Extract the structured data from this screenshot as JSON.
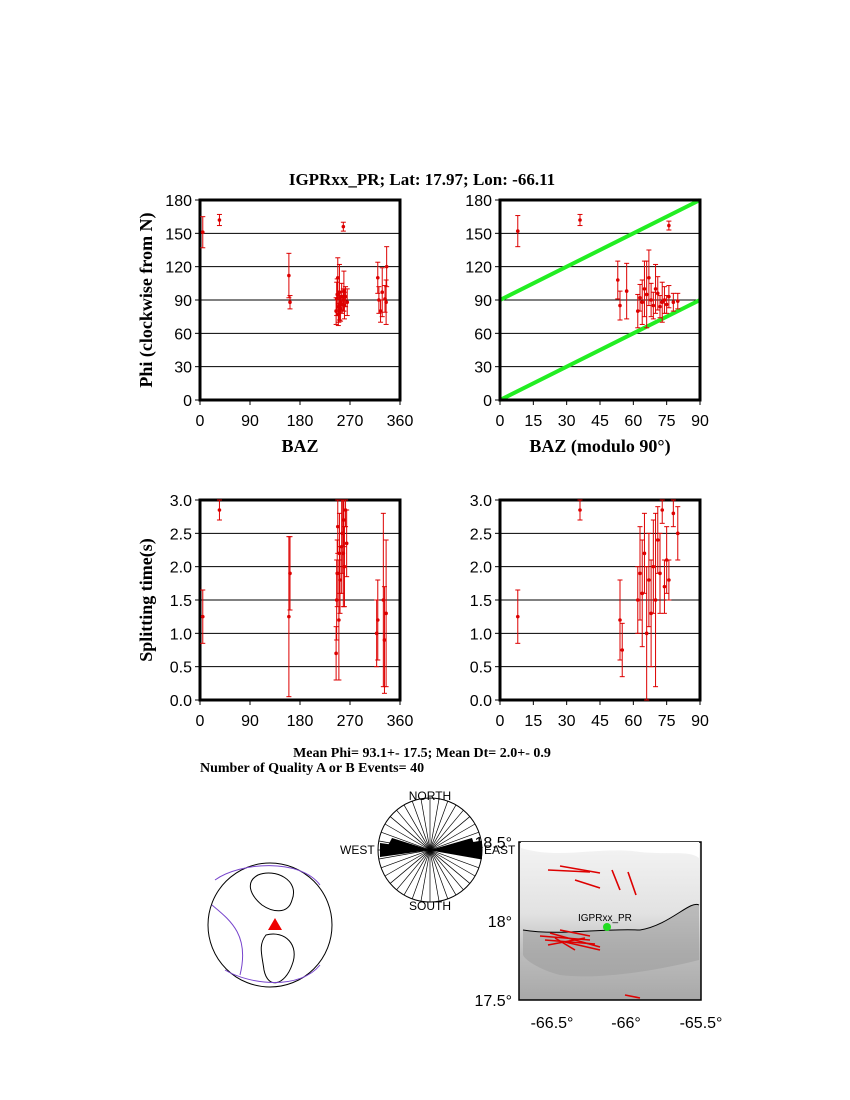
{
  "title": "IGPRxx_PR; Lat:  17.97;  Lon:  -66.11",
  "stats": {
    "line1": "Mean Phi= 93.1+- 17.5; Mean Dt=  2.0+-  0.9",
    "line2": "Number of Quality A or B Events= 40"
  },
  "rose": {
    "north": "NORTH",
    "south": "SOUTH",
    "west": "WEST",
    "east": "EAST"
  },
  "map": {
    "station": "IGPRxx_PR",
    "lat_labels": [
      "17.5°",
      "18°",
      "18.5°"
    ],
    "lon_labels": [
      "-66.5°",
      "-66°",
      "-65.5°"
    ],
    "station_color": "#22dd22"
  },
  "colors": {
    "data": "#dd0000",
    "fit": "#22ee22"
  },
  "chart_data": [
    {
      "type": "scatter",
      "id": "phi_baz",
      "title": "IGPRxx_PR; Lat:  17.97;  Lon:  -66.11",
      "xlabel": "BAZ",
      "ylabel": "Phi (clockwise from N)",
      "xlim": [
        0,
        360
      ],
      "ylim": [
        0,
        180
      ],
      "xticks": [
        "0",
        "90",
        "180",
        "270",
        "360"
      ],
      "yticks": [
        "0",
        "30",
        "60",
        "90",
        "120",
        "150",
        "180"
      ],
      "grid": "horizontal",
      "points": [
        [
          5,
          151,
          14
        ],
        [
          35,
          162,
          5
        ],
        [
          160,
          112,
          20
        ],
        [
          162,
          88,
          6
        ],
        [
          245,
          80,
          12
        ],
        [
          246,
          91,
          15
        ],
        [
          247,
          95,
          14
        ],
        [
          248,
          110,
          18
        ],
        [
          249,
          77,
          10
        ],
        [
          250,
          84,
          14
        ],
        [
          251,
          97,
          25
        ],
        [
          252,
          88,
          9
        ],
        [
          253,
          82,
          11
        ],
        [
          255,
          93,
          12
        ],
        [
          256,
          86,
          8
        ],
        [
          258,
          90,
          10
        ],
        [
          259,
          98,
          18
        ],
        [
          260,
          85,
          12
        ],
        [
          262,
          93,
          9
        ],
        [
          265,
          88,
          12
        ],
        [
          258,
          156,
          4
        ],
        [
          320,
          110,
          14
        ],
        [
          322,
          90,
          12
        ],
        [
          325,
          80,
          10
        ],
        [
          328,
          97,
          22
        ],
        [
          333,
          91,
          12
        ],
        [
          335,
          88,
          20
        ],
        [
          336,
          120,
          18
        ]
      ]
    },
    {
      "type": "scatter",
      "id": "phi_baz90",
      "xlabel": "BAZ (modulo 90°)",
      "ylabel": "",
      "xlim": [
        0,
        90
      ],
      "ylim": [
        0,
        180
      ],
      "xticks": [
        "0",
        "15",
        "30",
        "45",
        "60",
        "75",
        "90"
      ],
      "yticks": [
        "0",
        "30",
        "60",
        "90",
        "120",
        "150",
        "180"
      ],
      "grid": "horizontal",
      "fit_lines": [
        [
          [
            0,
            0
          ],
          [
            90,
            90
          ]
        ],
        [
          [
            0,
            90
          ],
          [
            90,
            180
          ]
        ]
      ],
      "points": [
        [
          8,
          152,
          14
        ],
        [
          36,
          162,
          5
        ],
        [
          53,
          108,
          17
        ],
        [
          54,
          85,
          13
        ],
        [
          57,
          98,
          25
        ],
        [
          62,
          80,
          15
        ],
        [
          63,
          92,
          12
        ],
        [
          64,
          88,
          20
        ],
        [
          65,
          100,
          25
        ],
        [
          66,
          95,
          30
        ],
        [
          67,
          110,
          25
        ],
        [
          68,
          90,
          15
        ],
        [
          69,
          85,
          12
        ],
        [
          70,
          100,
          22
        ],
        [
          71,
          96,
          15
        ],
        [
          72,
          84,
          10
        ],
        [
          73,
          88,
          18
        ],
        [
          74,
          90,
          12
        ],
        [
          75,
          86,
          8
        ],
        [
          76,
          93,
          10
        ],
        [
          78,
          88,
          8
        ],
        [
          80,
          89,
          7
        ],
        [
          76,
          157,
          4
        ]
      ]
    },
    {
      "type": "scatter",
      "id": "dt_baz",
      "xlabel": "",
      "ylabel": "Splitting time(s)",
      "xlim": [
        0,
        360
      ],
      "ylim": [
        0,
        3
      ],
      "xticks": [
        "0",
        "90",
        "180",
        "270",
        "360"
      ],
      "yticks": [
        "0.0",
        "0.5",
        "1.0",
        "1.5",
        "2.0",
        "2.5",
        "3.0"
      ],
      "grid": "horizontal",
      "points": [
        [
          5,
          1.25,
          0.4
        ],
        [
          35,
          2.85,
          0.15
        ],
        [
          160,
          1.25,
          1.2
        ],
        [
          162,
          1.9,
          0.55
        ],
        [
          245,
          0.7,
          0.4
        ],
        [
          246,
          1.5,
          0.6
        ],
        [
          247,
          1.9,
          0.5
        ],
        [
          248,
          2.6,
          0.4
        ],
        [
          250,
          1.2,
          0.9
        ],
        [
          251,
          2.2,
          0.6
        ],
        [
          252,
          1.8,
          0.5
        ],
        [
          255,
          2.3,
          0.7
        ],
        [
          256,
          2.5,
          0.6
        ],
        [
          258,
          2.2,
          0.8
        ],
        [
          259,
          2.7,
          0.4
        ],
        [
          260,
          2.0,
          0.6
        ],
        [
          262,
          2.85,
          0.25
        ],
        [
          264,
          2.35,
          0.5
        ],
        [
          318,
          1.0,
          0.5
        ],
        [
          320,
          1.2,
          0.6
        ],
        [
          330,
          1.5,
          1.3
        ],
        [
          332,
          0.9,
          0.8
        ],
        [
          335,
          1.3,
          1.1
        ]
      ]
    },
    {
      "type": "scatter",
      "id": "dt_baz90",
      "xlabel": "",
      "ylabel": "",
      "xlim": [
        0,
        90
      ],
      "ylim": [
        0,
        3
      ],
      "xticks": [
        "0",
        "15",
        "30",
        "45",
        "60",
        "75",
        "90"
      ],
      "yticks": [
        "0.0",
        "0.5",
        "1.0",
        "1.5",
        "2.0",
        "2.5",
        "3.0"
      ],
      "grid": "horizontal",
      "points": [
        [
          8,
          1.25,
          0.4
        ],
        [
          36,
          2.85,
          0.15
        ],
        [
          54,
          1.2,
          0.6
        ],
        [
          55,
          0.75,
          0.4
        ],
        [
          62,
          1.5,
          0.5
        ],
        [
          63,
          1.9,
          0.7
        ],
        [
          64,
          1.6,
          0.8
        ],
        [
          65,
          2.2,
          0.6
        ],
        [
          66,
          1.0,
          1.0
        ],
        [
          67,
          1.8,
          0.7
        ],
        [
          68,
          1.3,
          0.8
        ],
        [
          69,
          2.0,
          0.7
        ],
        [
          70,
          1.5,
          1.3
        ],
        [
          71,
          2.4,
          0.5
        ],
        [
          72,
          1.9,
          0.6
        ],
        [
          73,
          2.85,
          0.2
        ],
        [
          74,
          1.7,
          0.4
        ],
        [
          75,
          2.1,
          0.5
        ],
        [
          76,
          1.8,
          0.3
        ],
        [
          78,
          2.8,
          0.2
        ],
        [
          80,
          2.5,
          0.4
        ]
      ]
    }
  ]
}
